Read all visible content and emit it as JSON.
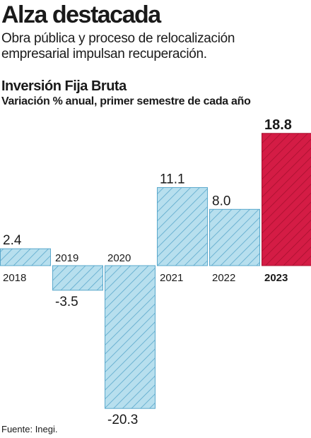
{
  "headline": "Alza destacada",
  "subheadline": "Obra pública y proceso de relocalización empresarial impulsan recuperación.",
  "source": "Fuente: Inegi.",
  "colors": {
    "normal_fill": "#b7dfee",
    "normal_stroke": "#5aa8cc",
    "highlight_fill": "#d41c45",
    "highlight_stroke": "#a8102f"
  },
  "chart_data": {
    "type": "bar",
    "title": "Inversión Fija Bruta",
    "subtitle": "Variación % anual, primer semestre de cada año",
    "categories": [
      "2018",
      "2019",
      "2020",
      "2021",
      "2022",
      "2023"
    ],
    "values": [
      2.4,
      -3.5,
      -20.3,
      11.1,
      8.0,
      18.8
    ],
    "value_labels": [
      "2.4",
      "-3.5",
      "-20.3",
      "11.1",
      "8.0",
      "18.8"
    ],
    "highlight": "2023",
    "ylim": [
      -21,
      19
    ]
  }
}
